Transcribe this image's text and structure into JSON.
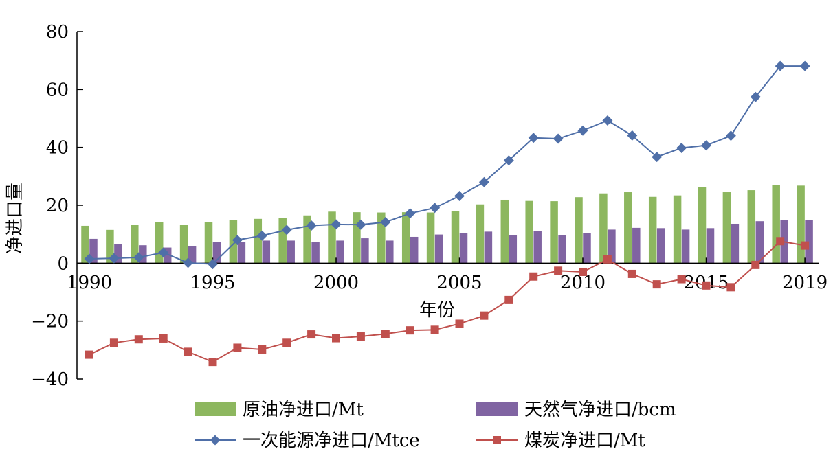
{
  "chart_data": {
    "type": "bar",
    "xlabel": "年份",
    "ylabel": "净进口量",
    "ylim": [
      -40,
      80
    ],
    "y_ticks": [
      80,
      60,
      40,
      20,
      0,
      -20,
      -40
    ],
    "y_tick_labels": [
      "80",
      "60",
      "40",
      "20",
      "0",
      "−20",
      "−40"
    ],
    "x": [
      1990,
      1991,
      1992,
      1993,
      1994,
      1995,
      1996,
      1997,
      1998,
      1999,
      2000,
      2001,
      2002,
      2003,
      2004,
      2005,
      2006,
      2007,
      2008,
      2009,
      2010,
      2011,
      2012,
      2013,
      2014,
      2015,
      2016,
      2017,
      2018,
      2019
    ],
    "x_ticks": [
      1990,
      1995,
      2000,
      2005,
      2010,
      2015,
      2019
    ],
    "x_tick_labels": [
      "1990",
      "1995",
      "2000",
      "2005",
      "2010",
      "2015",
      "2019"
    ],
    "grid": false,
    "legend_position": "bottom",
    "series": [
      {
        "name": "原油净进口/Mt",
        "kind": "bar",
        "color": "#8DB75F",
        "values": [
          12.9,
          11.5,
          13.3,
          14.1,
          13.3,
          14.1,
          14.8,
          15.3,
          15.7,
          16.5,
          17.8,
          17.6,
          17.5,
          17.6,
          17.5,
          17.9,
          20.3,
          21.9,
          21.5,
          21.4,
          22.8,
          24.1,
          24.5,
          22.9,
          23.4,
          26.3,
          24.5,
          25.2,
          27.1,
          26.8
        ]
      },
      {
        "name": "天然气净进口/bcm",
        "kind": "bar",
        "color": "#8064A2",
        "values": [
          8.4,
          6.7,
          6.2,
          5.4,
          5.8,
          7.2,
          7.4,
          7.8,
          7.8,
          7.4,
          7.8,
          8.6,
          7.8,
          9.1,
          9.9,
          10.3,
          10.9,
          9.8,
          11.0,
          9.8,
          10.5,
          11.6,
          12.2,
          12.1,
          11.6,
          12.1,
          13.6,
          14.5,
          14.8,
          14.8
        ]
      },
      {
        "name": "一次能源净进口/Mtce",
        "kind": "line",
        "marker": "diamond",
        "color": "#4F6FA8",
        "values": [
          1.5,
          1.7,
          2.0,
          3.7,
          0.1,
          -0.3,
          8.0,
          9.5,
          11.5,
          13.0,
          13.4,
          13.3,
          14.2,
          17.2,
          19.1,
          23.2,
          28.0,
          35.5,
          43.3,
          43.0,
          45.8,
          49.3,
          44.1,
          36.7,
          39.8,
          40.7,
          44.0,
          57.4,
          68.1,
          68.1
        ]
      },
      {
        "name": "煤炭净进口/Mt",
        "kind": "line",
        "marker": "square",
        "color": "#C0504D",
        "values": [
          -31.6,
          -27.5,
          -26.3,
          -26.0,
          -30.6,
          -34.1,
          -29.2,
          -29.8,
          -27.5,
          -24.6,
          -25.9,
          -25.3,
          -24.4,
          -23.2,
          -23.0,
          -20.9,
          -18.1,
          -12.7,
          -4.6,
          -2.6,
          -3.0,
          1.3,
          -3.7,
          -7.3,
          -5.5,
          -7.7,
          -8.3,
          -0.6,
          7.6,
          6.1
        ]
      }
    ]
  }
}
